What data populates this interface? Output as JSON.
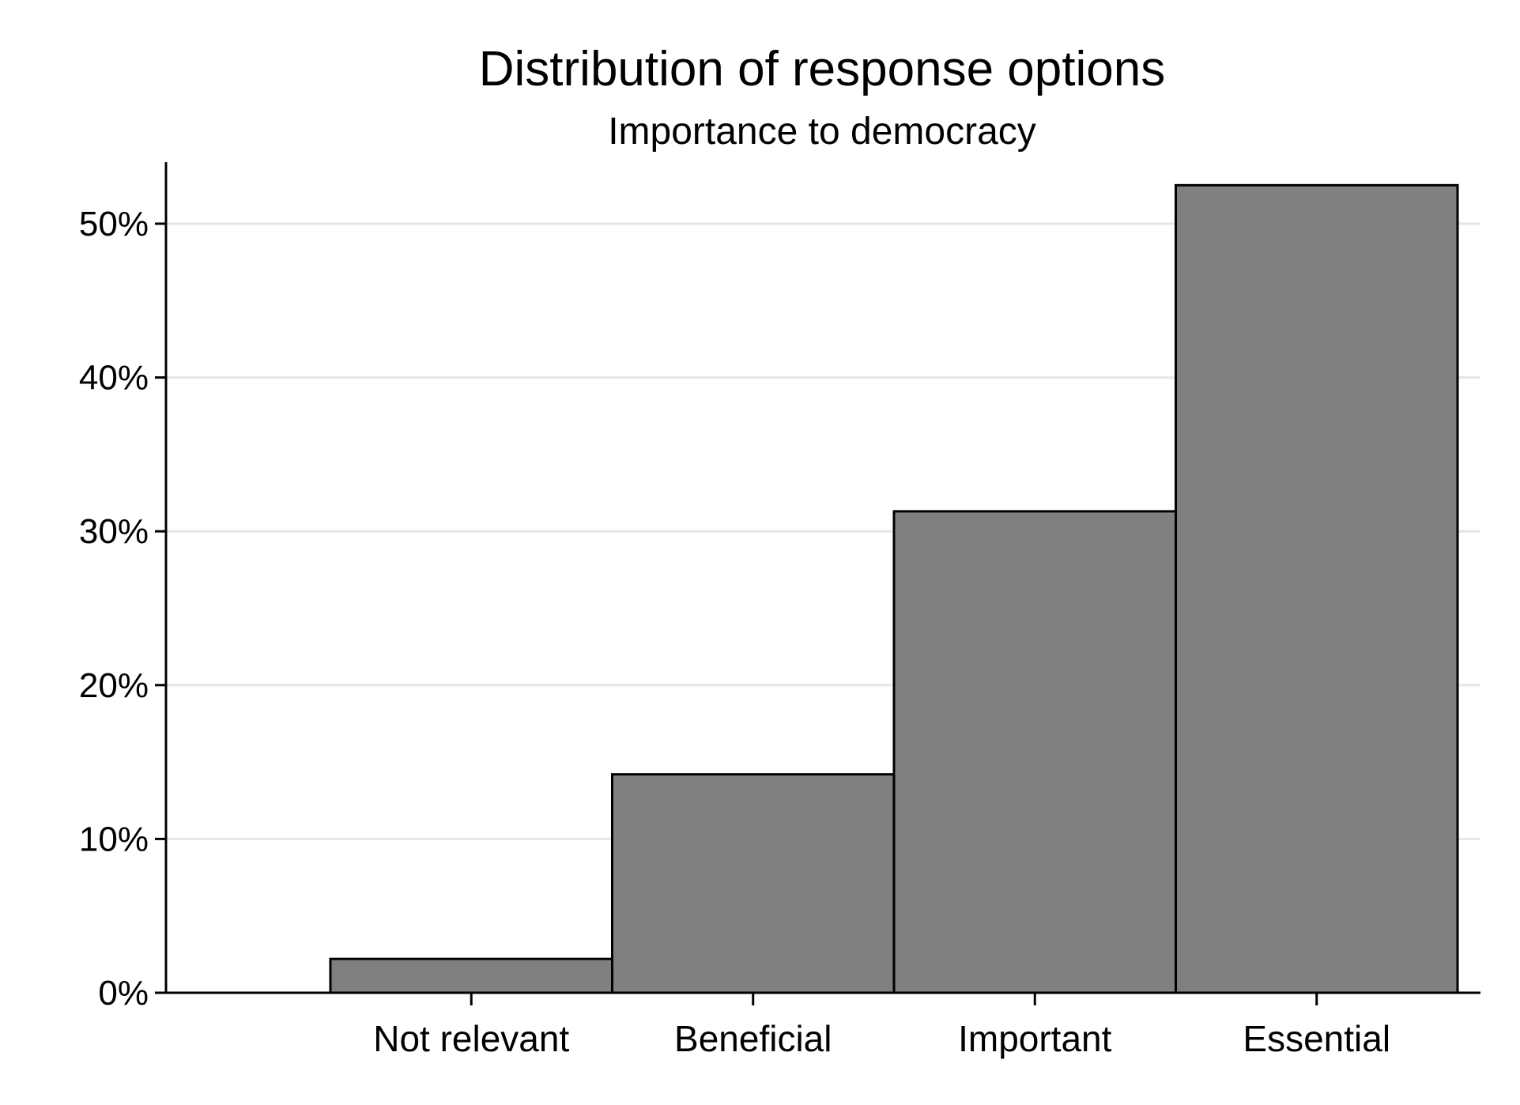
{
  "chart_data": {
    "type": "bar",
    "title": "Distribution of response options",
    "subtitle": "Importance to democracy",
    "xlabel": "",
    "ylabel": "",
    "categories": [
      "Not relevant",
      "Beneficial",
      "Important",
      "Essential"
    ],
    "values": [
      2.2,
      14.2,
      31.3,
      52.5
    ],
    "ylim": [
      0,
      54
    ],
    "yticks": [
      0,
      10,
      20,
      30,
      40,
      50
    ],
    "ytick_labels": [
      "0%",
      "10%",
      "20%",
      "30%",
      "40%",
      "50%"
    ],
    "grid": true,
    "legend": "none",
    "bar_color": "#808080",
    "edge_color": "#000000",
    "grid_color": "#e6e6e6"
  }
}
